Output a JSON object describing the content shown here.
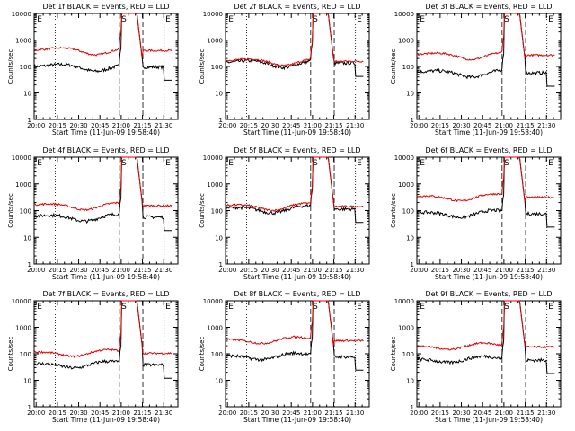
{
  "chart_data": [
    {
      "type": "line",
      "title": "Det 1f BLACK = Events, RED = LLD",
      "xlabel": "Start Time (11-Jun-09 19:58:40)",
      "ylabel": "Counts/sec",
      "x_ticks": [
        "20:00",
        "20:15",
        "20:30",
        "20:45",
        "21:00",
        "21:15",
        "21:30"
      ],
      "x_range_min": [
        0,
        100
      ],
      "ylim": [
        1,
        10000
      ],
      "yscale": "log",
      "y_ticks": [
        "1",
        "10",
        "100",
        "1000",
        "10000"
      ],
      "segment_markers": [
        "E",
        "S",
        "E"
      ],
      "series": [
        {
          "name": "Events",
          "color": "#000000",
          "level": 100,
          "peak": "off-scale"
        },
        {
          "name": "LLD",
          "color": "#e00000",
          "level": 420,
          "peak": "off-scale"
        }
      ]
    },
    {
      "type": "line",
      "title": "Det 2f BLACK = Events, RED = LLD",
      "xlabel": "Start Time (11-Jun-09 19:58:40)",
      "ylabel": "Counts/sec",
      "x_ticks": [
        "20:00",
        "20:15",
        "20:30",
        "20:45",
        "21:00",
        "21:15",
        "21:30"
      ],
      "x_range_min": [
        0,
        100
      ],
      "ylim": [
        1,
        10000
      ],
      "yscale": "log",
      "y_ticks": [
        "1",
        "10",
        "100",
        "1000",
        "10000"
      ],
      "segment_markers": [
        "E",
        "S",
        "E"
      ],
      "series": [
        {
          "name": "Events",
          "color": "#000000",
          "level": 140,
          "peak": "off-scale"
        },
        {
          "name": "LLD",
          "color": "#e00000",
          "level": 165,
          "peak": "off-scale"
        }
      ]
    },
    {
      "type": "line",
      "title": "Det 3f BLACK = Events, RED = LLD",
      "xlabel": "Start Time (11-Jun-09 19:58:40)",
      "ylabel": "Counts/sec",
      "x_ticks": [
        "20:00",
        "20:15",
        "20:30",
        "20:45",
        "21:00",
        "21:15",
        "21:30"
      ],
      "x_range_min": [
        0,
        100
      ],
      "ylim": [
        1,
        10000
      ],
      "yscale": "log",
      "y_ticks": [
        "1",
        "10",
        "100",
        "1000",
        "10000"
      ],
      "segment_markers": [
        "E",
        "S",
        "E"
      ],
      "series": [
        {
          "name": "Events",
          "color": "#000000",
          "level": 60,
          "peak": "off-scale"
        },
        {
          "name": "LLD",
          "color": "#e00000",
          "level": 280,
          "peak": "off-scale"
        }
      ]
    },
    {
      "type": "line",
      "title": "Det 4f BLACK = Events, RED = LLD",
      "xlabel": "Start Time (11-Jun-09 19:58:40)",
      "ylabel": "Counts/sec",
      "x_ticks": [
        "20:00",
        "20:15",
        "20:30",
        "20:45",
        "21:00",
        "21:15",
        "21:30"
      ],
      "x_range_min": [
        0,
        100
      ],
      "ylim": [
        1,
        10000
      ],
      "yscale": "log",
      "y_ticks": [
        "1",
        "10",
        "100",
        "1000",
        "10000"
      ],
      "segment_markers": [
        "E",
        "S",
        "E"
      ],
      "series": [
        {
          "name": "Events",
          "color": "#000000",
          "level": 60,
          "peak": "off-scale"
        },
        {
          "name": "LLD",
          "color": "#e00000",
          "level": 160,
          "peak": "off-scale"
        }
      ]
    },
    {
      "type": "line",
      "title": "Det 5f BLACK = Events, RED = LLD",
      "xlabel": "Start Time (11-Jun-09 19:58:40)",
      "ylabel": "Counts/sec",
      "x_ticks": [
        "20:00",
        "20:15",
        "20:30",
        "20:45",
        "21:00",
        "21:15",
        "21:30"
      ],
      "x_range_min": [
        0,
        100
      ],
      "ylim": [
        1,
        10000
      ],
      "yscale": "log",
      "y_ticks": [
        "1",
        "10",
        "100",
        "1000",
        "10000"
      ],
      "segment_markers": [
        "E",
        "S",
        "E"
      ],
      "series": [
        {
          "name": "Events",
          "color": "#000000",
          "level": 120,
          "peak": "off-scale"
        },
        {
          "name": "LLD",
          "color": "#e00000",
          "level": 150,
          "peak": "off-scale"
        }
      ]
    },
    {
      "type": "line",
      "title": "Det 6f BLACK = Events, RED = LLD",
      "xlabel": "Start Time (11-Jun-09 19:58:40)",
      "ylabel": "Counts/sec",
      "x_ticks": [
        "20:00",
        "20:15",
        "20:30",
        "20:45",
        "21:00",
        "21:15",
        "21:30"
      ],
      "x_range_min": [
        0,
        100
      ],
      "ylim": [
        1,
        10000
      ],
      "yscale": "log",
      "y_ticks": [
        "1",
        "10",
        "100",
        "1000",
        "10000"
      ],
      "segment_markers": [
        "E",
        "S",
        "E"
      ],
      "series": [
        {
          "name": "Events",
          "color": "#000000",
          "level": 80,
          "peak": "off-scale"
        },
        {
          "name": "LLD",
          "color": "#e00000",
          "level": 330,
          "peak": "off-scale"
        }
      ]
    },
    {
      "type": "line",
      "title": "Det 7f BLACK = Events, RED = LLD",
      "xlabel": "Start Time (11-Jun-09 19:58:40)",
      "ylabel": "Counts/sec",
      "x_ticks": [
        "20:00",
        "20:15",
        "20:30",
        "20:45",
        "21:00",
        "21:15",
        "21:30"
      ],
      "x_range_min": [
        0,
        100
      ],
      "ylim": [
        1,
        10000
      ],
      "yscale": "log",
      "y_ticks": [
        "1",
        "10",
        "100",
        "1000",
        "10000"
      ],
      "segment_markers": [
        "E",
        "S",
        "E"
      ],
      "series": [
        {
          "name": "Events",
          "color": "#000000",
          "level": 40,
          "peak": "off-scale"
        },
        {
          "name": "LLD",
          "color": "#e00000",
          "level": 110,
          "peak": "off-scale"
        }
      ]
    },
    {
      "type": "line",
      "title": "Det 8f BLACK = Events, RED = LLD",
      "xlabel": "Start Time (11-Jun-09 19:58:40)",
      "ylabel": "Counts/sec",
      "x_ticks": [
        "20:00",
        "20:15",
        "20:30",
        "20:45",
        "21:00",
        "21:15",
        "21:30"
      ],
      "x_range_min": [
        0,
        100
      ],
      "ylim": [
        1,
        10000
      ],
      "yscale": "log",
      "y_ticks": [
        "1",
        "10",
        "100",
        "1000",
        "10000"
      ],
      "segment_markers": [
        "E",
        "S",
        "E"
      ],
      "series": [
        {
          "name": "Events",
          "color": "#000000",
          "level": 80,
          "peak": "off-scale"
        },
        {
          "name": "LLD",
          "color": "#e00000",
          "level": 330,
          "peak": "off-scale"
        }
      ]
    },
    {
      "type": "line",
      "title": "Det 9f BLACK = Events, RED = LLD",
      "xlabel": "Start Time (11-Jun-09 19:58:40)",
      "ylabel": "Counts/sec",
      "x_ticks": [
        "20:00",
        "20:15",
        "20:30",
        "20:45",
        "21:00",
        "21:15",
        "21:30"
      ],
      "x_range_min": [
        0,
        100
      ],
      "ylim": [
        1,
        10000
      ],
      "yscale": "log",
      "y_ticks": [
        "1",
        "10",
        "100",
        "1000",
        "10000"
      ],
      "segment_markers": [
        "E",
        "S",
        "E"
      ],
      "series": [
        {
          "name": "Events",
          "color": "#000000",
          "level": 60,
          "peak": "off-scale"
        },
        {
          "name": "LLD",
          "color": "#e00000",
          "level": 190,
          "peak": "off-scale"
        }
      ]
    }
  ]
}
